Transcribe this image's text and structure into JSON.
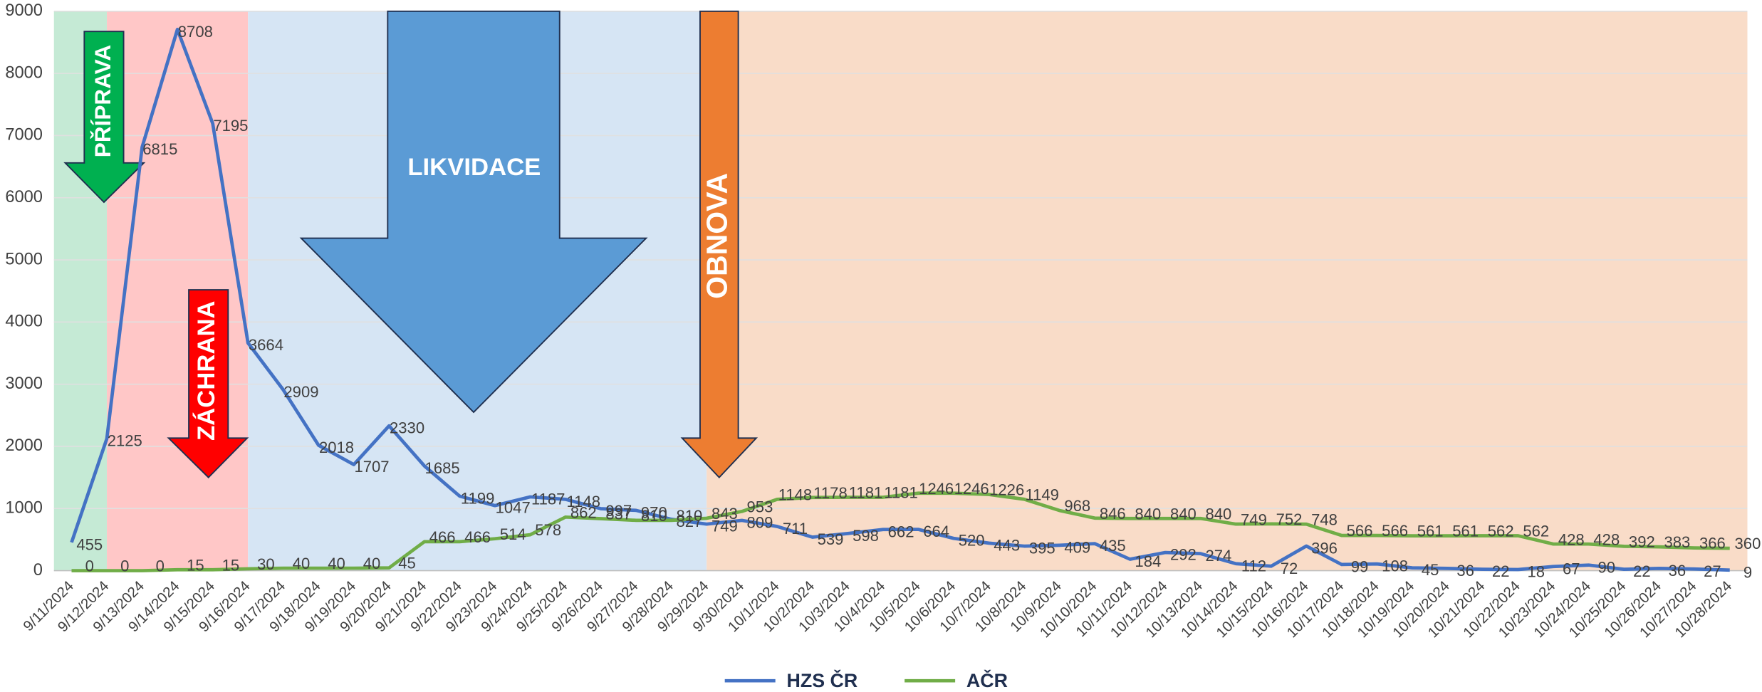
{
  "chart_data": {
    "type": "line",
    "categories": [
      "9/11/2024",
      "9/12/2024",
      "9/13/2024",
      "9/14/2024",
      "9/15/2024",
      "9/16/2024",
      "9/17/2024",
      "9/18/2024",
      "9/19/2024",
      "9/20/2024",
      "9/21/2024",
      "9/22/2024",
      "9/23/2024",
      "9/24/2024",
      "9/25/2024",
      "9/26/2024",
      "9/27/2024",
      "9/28/2024",
      "9/29/2024",
      "9/30/2024",
      "10/1/2024",
      "10/2/2024",
      "10/3/2024",
      "10/4/2024",
      "10/5/2024",
      "10/6/2024",
      "10/7/2024",
      "10/8/2024",
      "10/9/2024",
      "10/10/2024",
      "10/11/2024",
      "10/12/2024",
      "10/13/2024",
      "10/14/2024",
      "10/15/2024",
      "10/16/2024",
      "10/17/2024",
      "10/18/2024",
      "10/19/2024",
      "10/20/2024",
      "10/21/2024",
      "10/22/2024",
      "10/23/2024",
      "10/24/2024",
      "10/25/2024",
      "10/26/2024",
      "10/27/2024",
      "10/28/2024"
    ],
    "series": [
      {
        "name": "HZS ČR",
        "color": "#4472c4",
        "values": [
          455,
          2125,
          6815,
          8708,
          7195,
          3664,
          2909,
          2018,
          1707,
          2330,
          1685,
          1199,
          1047,
          1187,
          1148,
          997,
          970,
          827,
          749,
          809,
          711,
          539,
          598,
          662,
          664,
          520,
          443,
          395,
          409,
          435,
          184,
          292,
          274,
          112,
          72,
          396,
          99,
          108,
          45,
          36,
          22,
          18,
          67,
          90,
          22,
          36,
          27,
          9
        ]
      },
      {
        "name": "AČR",
        "color": "#70ad47",
        "values": [
          0,
          0,
          0,
          15,
          15,
          30,
          40,
          40,
          40,
          45,
          466,
          466,
          514,
          578,
          862,
          837,
          810,
          810,
          843,
          953,
          1148,
          1178,
          1181,
          1181,
          1246,
          1246,
          1226,
          1149,
          968,
          846,
          840,
          840,
          840,
          749,
          752,
          748,
          566,
          566,
          561,
          561,
          562,
          562,
          428,
          428,
          392,
          383,
          366,
          360
        ]
      }
    ],
    "phases": [
      {
        "label": "PŘÍPRAVA",
        "from": "9/11/2024",
        "color": "#c5ead5",
        "arrow_color": "#00b050"
      },
      {
        "label": "ZÁCHRANA",
        "from": "9/13/2024",
        "color": "#ffc7c7",
        "arrow_color": "#ff0000"
      },
      {
        "label": "LIKVIDACE",
        "from": "9/17/2024",
        "color": "#d6e5f4",
        "arrow_color": "#5b9bd5"
      },
      {
        "label": "OBNOVA",
        "from": "9/30/2024",
        "color": "#f9dcc8",
        "arrow_color": "#ed7d31"
      }
    ],
    "ylim": [
      0,
      9000
    ],
    "yticks": [
      0,
      1000,
      2000,
      3000,
      4000,
      5000,
      6000,
      7000,
      8000,
      9000
    ],
    "grid": true,
    "legend": "bottom"
  }
}
